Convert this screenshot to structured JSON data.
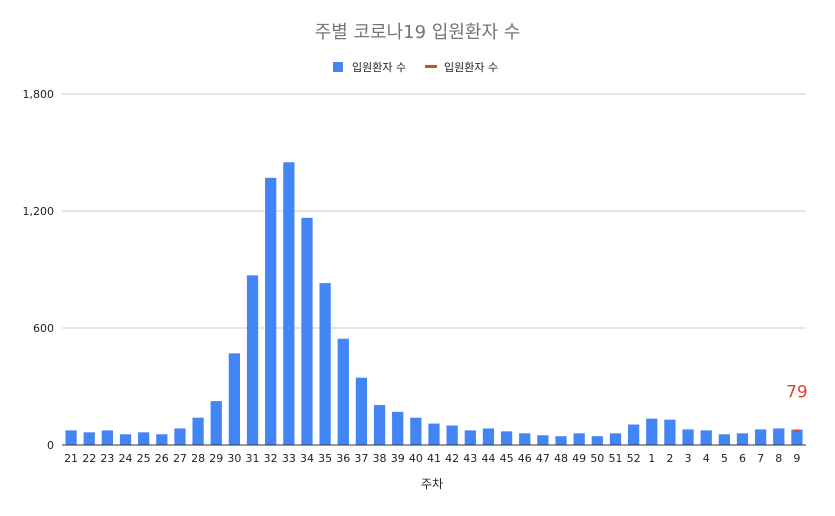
{
  "chart_data": {
    "type": "bar",
    "title": "주별 코로나19 입원환자 수",
    "xlabel": "주차",
    "ylabel": "",
    "ylim": [
      0,
      1800
    ],
    "yticks": [
      "0",
      "600",
      "1,200",
      "1,800"
    ],
    "ytick_values": [
      0,
      600,
      1200,
      1800
    ],
    "grid": true,
    "legend_position": "top",
    "categories": [
      "21",
      "22",
      "23",
      "24",
      "25",
      "26",
      "27",
      "28",
      "29",
      "30",
      "31",
      "32",
      "33",
      "34",
      "35",
      "36",
      "37",
      "38",
      "39",
      "40",
      "41",
      "42",
      "43",
      "44",
      "45",
      "46",
      "47",
      "48",
      "49",
      "50",
      "51",
      "52",
      "1",
      "2",
      "3",
      "4",
      "5",
      "6",
      "7",
      "8",
      "9"
    ],
    "series": [
      {
        "name": "입원환자 수",
        "color": "#4285F4",
        "values": [
          75,
          65,
          75,
          55,
          65,
          55,
          85,
          140,
          225,
          470,
          870,
          1370,
          1450,
          1165,
          830,
          545,
          345,
          205,
          170,
          140,
          110,
          100,
          75,
          85,
          70,
          60,
          50,
          45,
          60,
          45,
          60,
          105,
          135,
          130,
          80,
          75,
          55,
          60,
          80,
          85,
          79
        ]
      }
    ],
    "legend": [
      {
        "label": "입원환자 수",
        "color": "#4285F4",
        "marker": "square"
      },
      {
        "label": "입원환자 수",
        "color": "#DB4437",
        "marker": "line"
      }
    ],
    "annotation": {
      "text": "79",
      "category": "9",
      "value": 79,
      "color": "#DB4437"
    }
  }
}
